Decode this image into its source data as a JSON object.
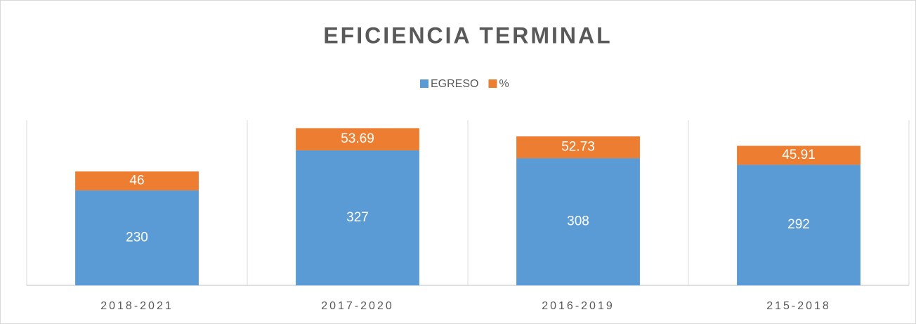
{
  "chart_data": {
    "type": "stacked_bar",
    "title": "EFICIENCIA TERMINAL",
    "categories": [
      "2018-2021",
      "2017-2020",
      "2016-2019",
      "215-2018"
    ],
    "series": [
      {
        "name": "EGRESO",
        "color": "#5b9bd5",
        "values": [
          230,
          327,
          308,
          292
        ]
      },
      {
        "name": "%",
        "color": "#ed7d31",
        "values": [
          46,
          53.69,
          52.73,
          45.91
        ]
      }
    ],
    "ylim": [
      0,
      400
    ],
    "legend": "top"
  }
}
